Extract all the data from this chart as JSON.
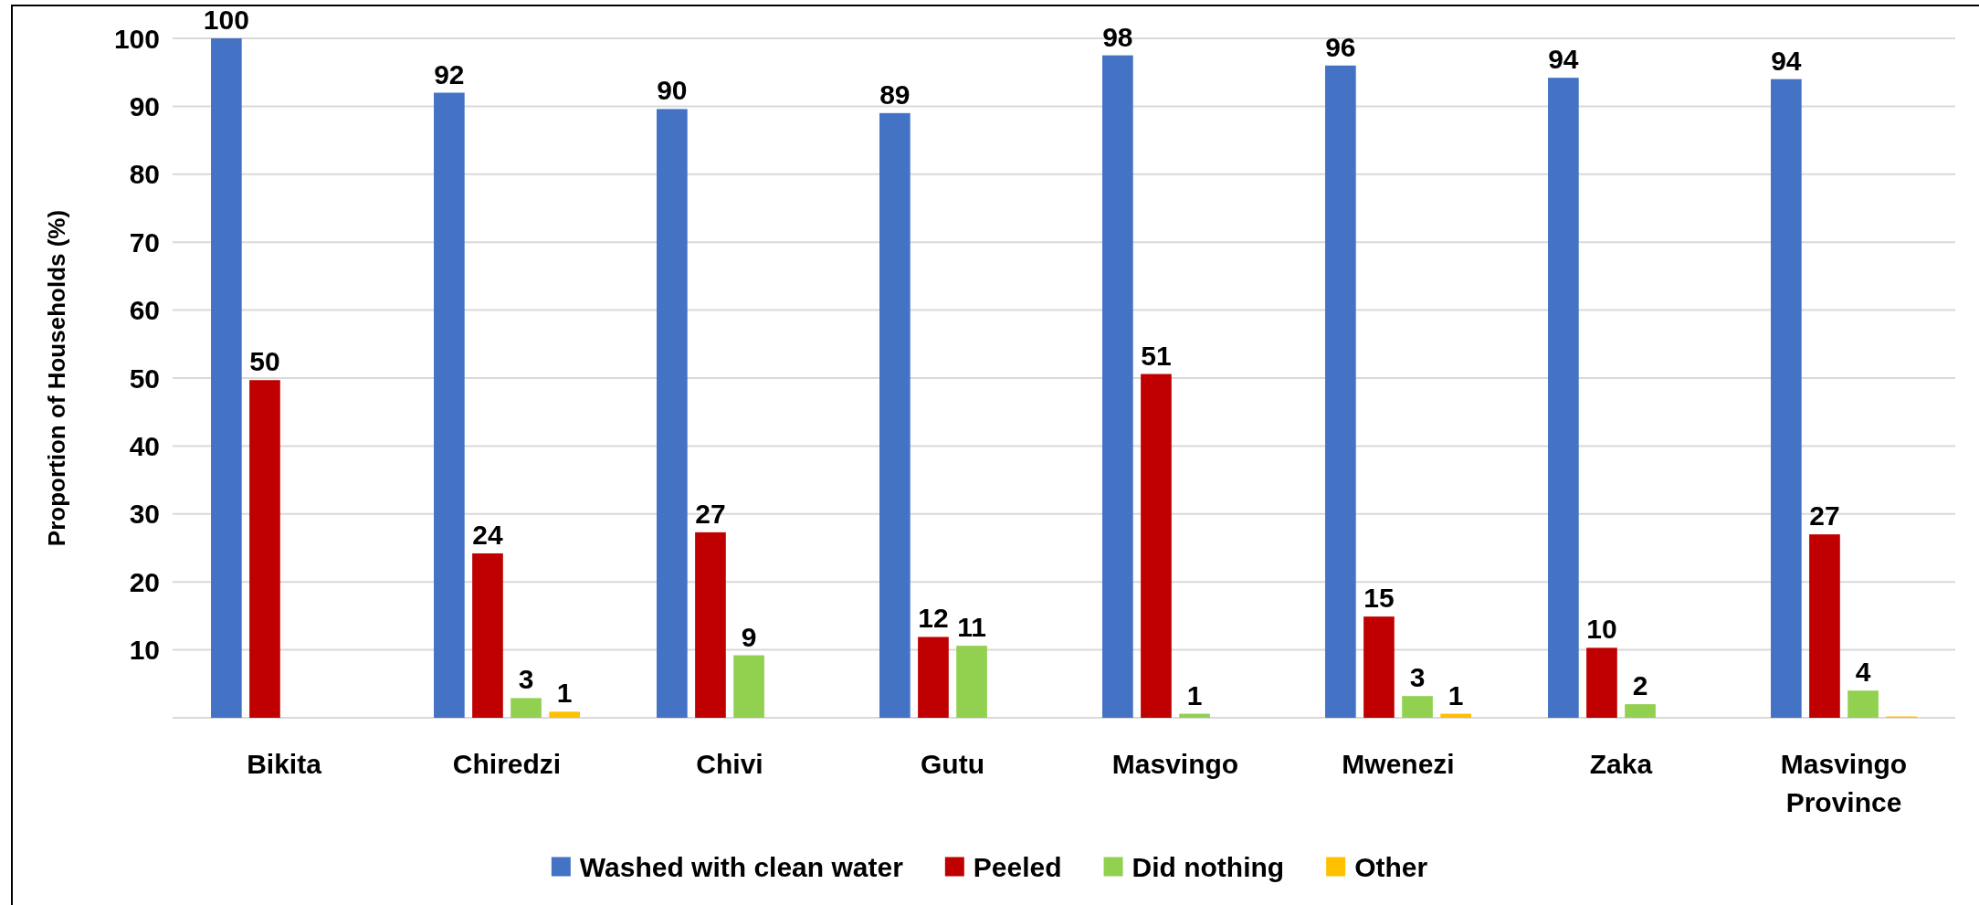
{
  "chart_data": {
    "type": "bar",
    "ylabel": "Proportion of Households (%)",
    "categories": [
      "Bikita",
      "Chiredzi",
      "Chivi",
      "Gutu",
      "Masvingo",
      "Mwenezi",
      "Zaka",
      "Masvingo Province"
    ],
    "series": [
      {
        "name": "Washed with clean water",
        "color": "#4472c4",
        "values": [
          100,
          92.0,
          89.6,
          89.0,
          97.5,
          96.0,
          94.2,
          94.0
        ],
        "value_labels": [
          "100",
          "92",
          "90",
          "89",
          "98",
          "96",
          "94",
          "94"
        ]
      },
      {
        "name": "Peeled",
        "color": "#c00000",
        "values": [
          49.7,
          24.2,
          27.3,
          11.9,
          50.6,
          14.9,
          10.3,
          27.0
        ],
        "value_labels": [
          "50",
          "24",
          "27",
          "12",
          "51",
          "15",
          "10",
          "27"
        ]
      },
      {
        "name": "Did nothing",
        "color": "#92d050",
        "values": [
          null,
          2.9,
          9.2,
          10.6,
          0.6,
          3.2,
          2.0,
          4.0
        ],
        "value_labels": [
          null,
          "3",
          "9",
          "11",
          "1",
          "3",
          "2",
          "4"
        ]
      },
      {
        "name": "Other",
        "color": "#ffc000",
        "values": [
          null,
          0.9,
          null,
          null,
          null,
          0.6,
          null,
          0.2
        ],
        "value_labels": [
          null,
          "1",
          null,
          null,
          null,
          "1",
          null,
          null
        ]
      }
    ],
    "ylim": [
      0,
      100
    ],
    "yticks": [
      10,
      20,
      30,
      40,
      50,
      60,
      70,
      80,
      90,
      100
    ],
    "grid": "y",
    "legend": "bottom"
  }
}
